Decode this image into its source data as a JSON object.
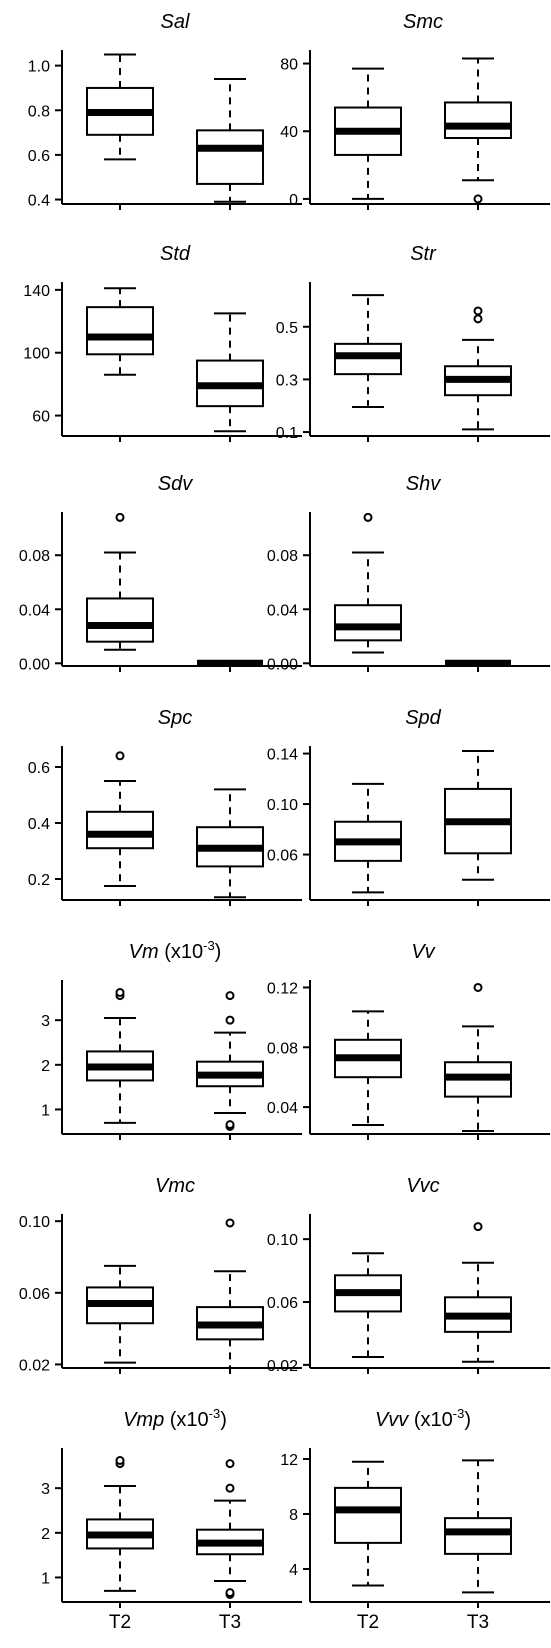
{
  "chart_data": {
    "type": "box",
    "grid": false,
    "categories": [
      "T2",
      "T3"
    ],
    "panels": [
      {
        "title": "Sal",
        "unit": "",
        "ylim": [
          0.38,
          1.07
        ],
        "yticks": [
          0.4,
          0.6,
          0.8,
          1.0
        ],
        "ytick_labels": [
          "0.4",
          "0.6",
          "0.8",
          "1.0"
        ],
        "boxes": [
          {
            "category": "T2",
            "whisker_low": 0.58,
            "q1": 0.69,
            "median": 0.79,
            "q3": 0.9,
            "whisker_high": 1.05,
            "outliers": []
          },
          {
            "category": "T3",
            "whisker_low": 0.39,
            "q1": 0.47,
            "median": 0.63,
            "q3": 0.71,
            "whisker_high": 0.94,
            "outliers": []
          }
        ]
      },
      {
        "title": "Smc",
        "unit": "",
        "ylim": [
          -3,
          88
        ],
        "yticks": [
          0,
          40,
          80
        ],
        "ytick_labels": [
          "0",
          "40",
          "80"
        ],
        "boxes": [
          {
            "category": "T2",
            "whisker_low": 0,
            "q1": 26,
            "median": 40,
            "q3": 54,
            "whisker_high": 77,
            "outliers": []
          },
          {
            "category": "T3",
            "whisker_low": 11,
            "q1": 36,
            "median": 43,
            "q3": 57,
            "whisker_high": 83,
            "outliers": [
              0
            ]
          }
        ]
      },
      {
        "title": "Std",
        "unit": "",
        "ylim": [
          47,
          145
        ],
        "yticks": [
          60,
          100,
          140
        ],
        "ytick_labels": [
          "60",
          "100",
          "140"
        ],
        "boxes": [
          {
            "category": "T2",
            "whisker_low": 86,
            "q1": 99,
            "median": 110,
            "q3": 129,
            "whisker_high": 141,
            "outliers": []
          },
          {
            "category": "T3",
            "whisker_low": 50,
            "q1": 66,
            "median": 79,
            "q3": 95,
            "whisker_high": 125,
            "outliers": []
          }
        ]
      },
      {
        "title": "Str",
        "unit": "",
        "ylim": [
          0.085,
          0.67
        ],
        "yticks": [
          0.1,
          0.3,
          0.5
        ],
        "ytick_labels": [
          "0.1",
          "0.3",
          "0.5"
        ],
        "boxes": [
          {
            "category": "T2",
            "whisker_low": 0.195,
            "q1": 0.32,
            "median": 0.39,
            "q3": 0.435,
            "whisker_high": 0.62,
            "outliers": []
          },
          {
            "category": "T3",
            "whisker_low": 0.11,
            "q1": 0.24,
            "median": 0.3,
            "q3": 0.35,
            "whisker_high": 0.45,
            "outliers": [
              0.53,
              0.56
            ]
          }
        ]
      },
      {
        "title": "Sdv",
        "unit": "",
        "ylim": [
          -0.002,
          0.112
        ],
        "yticks": [
          0.0,
          0.04,
          0.08
        ],
        "ytick_labels": [
          "0.00",
          "0.04",
          "0.08"
        ],
        "boxes": [
          {
            "category": "T2",
            "whisker_low": 0.01,
            "q1": 0.016,
            "median": 0.028,
            "q3": 0.048,
            "whisker_high": 0.082,
            "outliers": [
              0.108
            ]
          },
          {
            "category": "T3",
            "whisker_low": 0.0,
            "q1": 0.0,
            "median": 0.0,
            "q3": 0.0,
            "whisker_high": 0.0,
            "outliers": []
          }
        ]
      },
      {
        "title": "Shv",
        "unit": "",
        "ylim": [
          -0.002,
          0.112
        ],
        "yticks": [
          0.0,
          0.04,
          0.08
        ],
        "ytick_labels": [
          "0.00",
          "0.04",
          "0.08"
        ],
        "boxes": [
          {
            "category": "T2",
            "whisker_low": 0.008,
            "q1": 0.017,
            "median": 0.027,
            "q3": 0.043,
            "whisker_high": 0.082,
            "outliers": [
              0.108
            ]
          },
          {
            "category": "T3",
            "whisker_low": 0.0,
            "q1": 0.0,
            "median": 0.0,
            "q3": 0.0,
            "whisker_high": 0.0,
            "outliers": []
          }
        ]
      },
      {
        "title": "Spc",
        "unit": "",
        "ylim": [
          0.125,
          0.675
        ],
        "yticks": [
          0.2,
          0.4,
          0.6
        ],
        "ytick_labels": [
          "0.2",
          "0.4",
          "0.6"
        ],
        "boxes": [
          {
            "category": "T2",
            "whisker_low": 0.175,
            "q1": 0.31,
            "median": 0.36,
            "q3": 0.44,
            "whisker_high": 0.55,
            "outliers": [
              0.64
            ]
          },
          {
            "category": "T3",
            "whisker_low": 0.135,
            "q1": 0.245,
            "median": 0.31,
            "q3": 0.385,
            "whisker_high": 0.52,
            "outliers": []
          }
        ]
      },
      {
        "title": "Spd",
        "unit": "",
        "ylim": [
          0.024,
          0.146
        ],
        "yticks": [
          0.06,
          0.1,
          0.14
        ],
        "ytick_labels": [
          "0.06",
          "0.10",
          "0.14"
        ],
        "boxes": [
          {
            "category": "T2",
            "whisker_low": 0.03,
            "q1": 0.055,
            "median": 0.07,
            "q3": 0.086,
            "whisker_high": 0.116,
            "outliers": []
          },
          {
            "category": "T3",
            "whisker_low": 0.04,
            "q1": 0.061,
            "median": 0.086,
            "q3": 0.112,
            "whisker_high": 0.142,
            "outliers": []
          }
        ]
      },
      {
        "title": "Vm",
        "unit": " (x10",
        "unit_exp": "-3",
        "unit_close": ")",
        "ylim": [
          0.45,
          3.9
        ],
        "yticks": [
          1,
          2,
          3
        ],
        "ytick_labels": [
          "1",
          "2",
          "3"
        ],
        "boxes": [
          {
            "category": "T2",
            "whisker_low": 0.7,
            "q1": 1.65,
            "median": 1.95,
            "q3": 2.3,
            "whisker_high": 3.05,
            "outliers": [
              3.55,
              3.62
            ]
          },
          {
            "category": "T3",
            "whisker_low": 0.92,
            "q1": 1.52,
            "median": 1.77,
            "q3": 2.07,
            "whisker_high": 2.72,
            "outliers": [
              3.0,
              3.55,
              0.62,
              0.66
            ]
          }
        ]
      },
      {
        "title": "Vv",
        "unit": "",
        "ylim": [
          0.022,
          0.125
        ],
        "yticks": [
          0.04,
          0.08,
          0.12
        ],
        "ytick_labels": [
          "0.04",
          "0.08",
          "0.12"
        ],
        "boxes": [
          {
            "category": "T2",
            "whisker_low": 0.028,
            "q1": 0.06,
            "median": 0.073,
            "q3": 0.085,
            "whisker_high": 0.104,
            "outliers": []
          },
          {
            "category": "T3",
            "whisker_low": 0.024,
            "q1": 0.047,
            "median": 0.06,
            "q3": 0.07,
            "whisker_high": 0.094,
            "outliers": [
              0.12
            ]
          }
        ]
      },
      {
        "title": "Vmc",
        "unit": "",
        "ylim": [
          0.018,
          0.104
        ],
        "yticks": [
          0.02,
          0.06,
          0.1
        ],
        "ytick_labels": [
          "0.02",
          "0.06",
          "0.10"
        ],
        "boxes": [
          {
            "category": "T2",
            "whisker_low": 0.021,
            "q1": 0.043,
            "median": 0.054,
            "q3": 0.063,
            "whisker_high": 0.075,
            "outliers": []
          },
          {
            "category": "T3",
            "whisker_low": 0.018,
            "q1": 0.034,
            "median": 0.042,
            "q3": 0.052,
            "whisker_high": 0.072,
            "outliers": [
              0.099
            ]
          }
        ]
      },
      {
        "title": "Vvc",
        "unit": "",
        "ylim": [
          0.018,
          0.116
        ],
        "yticks": [
          0.02,
          0.06,
          0.1
        ],
        "ytick_labels": [
          "0.02",
          "0.06",
          "0.10"
        ],
        "boxes": [
          {
            "category": "T2",
            "whisker_low": 0.025,
            "q1": 0.054,
            "median": 0.066,
            "q3": 0.077,
            "whisker_high": 0.091,
            "outliers": []
          },
          {
            "category": "T3",
            "whisker_low": 0.022,
            "q1": 0.041,
            "median": 0.051,
            "q3": 0.063,
            "whisker_high": 0.085,
            "outliers": [
              0.108
            ]
          }
        ]
      },
      {
        "title": "Vmp",
        "unit": " (x10",
        "unit_exp": "-3",
        "unit_close": ")",
        "ylim": [
          0.45,
          3.9
        ],
        "yticks": [
          1,
          2,
          3
        ],
        "ytick_labels": [
          "1",
          "2",
          "3"
        ],
        "boxes": [
          {
            "category": "T2",
            "whisker_low": 0.7,
            "q1": 1.65,
            "median": 1.95,
            "q3": 2.3,
            "whisker_high": 3.05,
            "outliers": [
              3.55,
              3.62
            ]
          },
          {
            "category": "T3",
            "whisker_low": 0.92,
            "q1": 1.52,
            "median": 1.77,
            "q3": 2.07,
            "whisker_high": 2.72,
            "outliers": [
              3.0,
              3.55,
              0.62,
              0.66
            ]
          }
        ]
      },
      {
        "title": "Vvv",
        "unit": " (x10",
        "unit_exp": "-3",
        "unit_close": ")",
        "ylim": [
          1.6,
          12.8
        ],
        "yticks": [
          4,
          8,
          12
        ],
        "ytick_labels": [
          "4",
          "8",
          "12"
        ],
        "boxes": [
          {
            "category": "T2",
            "whisker_low": 2.8,
            "q1": 5.9,
            "median": 8.3,
            "q3": 9.9,
            "whisker_high": 11.8,
            "outliers": []
          },
          {
            "category": "T3",
            "whisker_low": 2.3,
            "q1": 5.1,
            "median": 6.7,
            "q3": 7.7,
            "whisker_high": 11.9,
            "outliers": []
          }
        ]
      }
    ]
  }
}
